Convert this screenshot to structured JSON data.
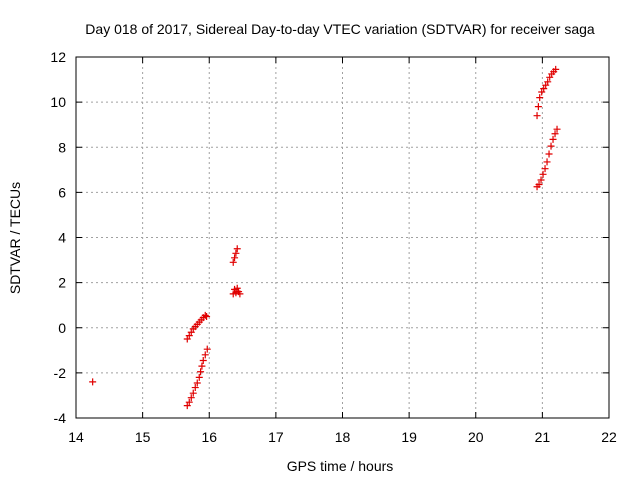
{
  "chart_data": {
    "type": "scatter",
    "title": "Day 018 of 2017, Sidereal Day-to-day VTEC variation (SDTVAR) for receiver saga",
    "xlabel": "GPS time / hours",
    "ylabel": "SDTVAR / TECUs",
    "xlim": [
      14,
      22
    ],
    "ylim": [
      -4,
      12
    ],
    "xticks": [
      14,
      15,
      16,
      17,
      18,
      19,
      20,
      21,
      22
    ],
    "yticks": [
      -4,
      -2,
      0,
      2,
      4,
      6,
      8,
      10,
      12
    ],
    "grid": true,
    "marker": "+",
    "color": "#e00000",
    "series": [
      {
        "name": "SDTVAR",
        "points": [
          [
            14.25,
            -2.4
          ],
          [
            15.67,
            -3.45
          ],
          [
            15.7,
            -3.3
          ],
          [
            15.73,
            -3.1
          ],
          [
            15.76,
            -2.9
          ],
          [
            15.79,
            -2.65
          ],
          [
            15.82,
            -2.45
          ],
          [
            15.85,
            -2.2
          ],
          [
            15.87,
            -1.95
          ],
          [
            15.89,
            -1.7
          ],
          [
            15.91,
            -1.45
          ],
          [
            15.94,
            -1.2
          ],
          [
            15.97,
            -0.95
          ],
          [
            15.67,
            -0.5
          ],
          [
            15.7,
            -0.35
          ],
          [
            15.73,
            -0.2
          ],
          [
            15.76,
            -0.05
          ],
          [
            15.79,
            0.05
          ],
          [
            15.82,
            0.15
          ],
          [
            15.85,
            0.25
          ],
          [
            15.88,
            0.35
          ],
          [
            15.91,
            0.45
          ],
          [
            15.94,
            0.55
          ],
          [
            15.96,
            0.5
          ],
          [
            16.36,
            2.9
          ],
          [
            16.38,
            3.1
          ],
          [
            16.4,
            3.3
          ],
          [
            16.42,
            3.5
          ],
          [
            16.36,
            1.5
          ],
          [
            16.38,
            1.7
          ],
          [
            16.4,
            1.55
          ],
          [
            16.42,
            1.75
          ],
          [
            16.44,
            1.6
          ],
          [
            16.46,
            1.5
          ],
          [
            20.92,
            9.4
          ],
          [
            20.94,
            9.8
          ],
          [
            20.96,
            10.2
          ],
          [
            20.99,
            10.45
          ],
          [
            21.02,
            10.6
          ],
          [
            21.05,
            10.75
          ],
          [
            21.08,
            10.9
          ],
          [
            21.11,
            11.1
          ],
          [
            21.14,
            11.25
          ],
          [
            21.17,
            11.35
          ],
          [
            21.2,
            11.45
          ],
          [
            20.92,
            6.25
          ],
          [
            20.95,
            6.35
          ],
          [
            20.98,
            6.55
          ],
          [
            21.01,
            6.8
          ],
          [
            21.04,
            7.05
          ],
          [
            21.07,
            7.35
          ],
          [
            21.1,
            7.7
          ],
          [
            21.13,
            8.05
          ],
          [
            21.16,
            8.35
          ],
          [
            21.19,
            8.6
          ],
          [
            21.22,
            8.8
          ]
        ]
      }
    ]
  }
}
